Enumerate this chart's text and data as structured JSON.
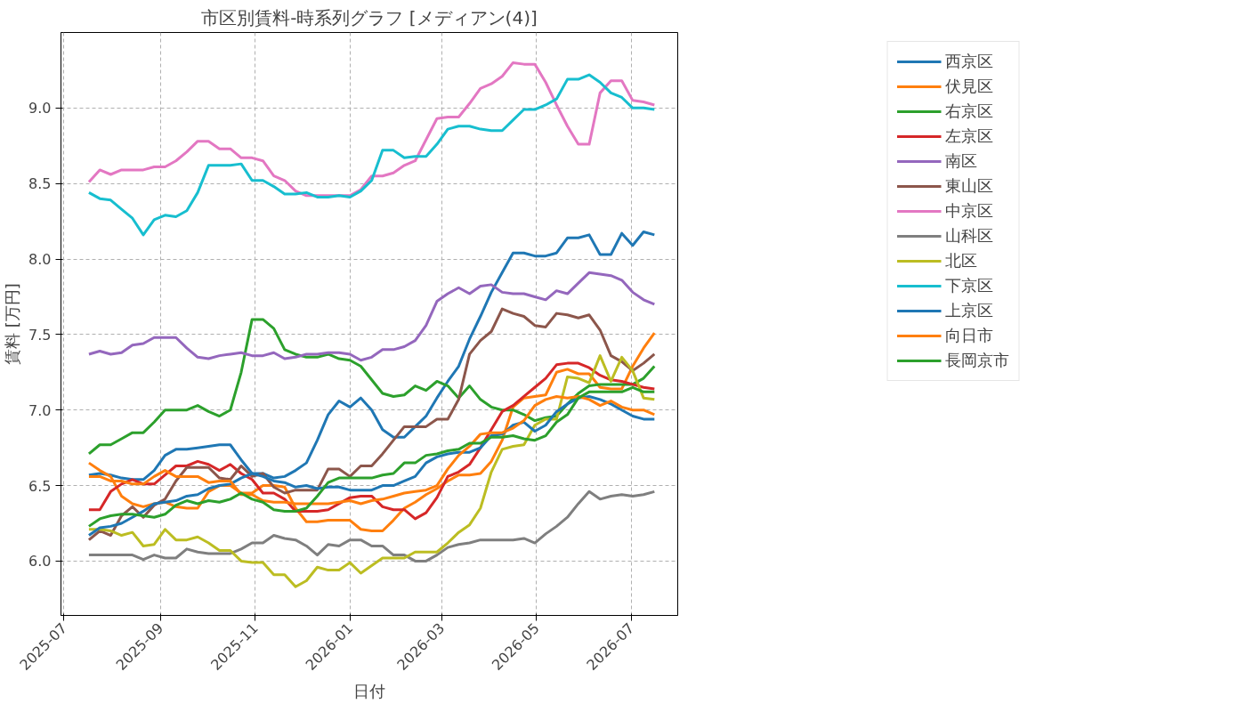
{
  "chart_data": {
    "type": "line",
    "title": "市区別賃料-時系列グラフ [メディアン(4)]",
    "xlabel": "日付",
    "ylabel": "賃料 [万円]",
    "x": [
      "2025-07-17",
      "2025-07-24",
      "2025-07-31",
      "2025-08-07",
      "2025-08-14",
      "2025-08-21",
      "2025-08-28",
      "2025-09-04",
      "2025-09-11",
      "2025-09-18",
      "2025-09-25",
      "2025-10-02",
      "2025-10-09",
      "2025-10-16",
      "2025-10-23",
      "2025-10-30",
      "2025-11-06",
      "2025-11-13",
      "2025-11-20",
      "2025-11-27",
      "2025-12-04",
      "2025-12-11",
      "2025-12-18",
      "2025-12-25",
      "2026-01-01",
      "2026-01-08",
      "2026-01-15",
      "2026-01-22",
      "2026-01-29",
      "2026-02-05",
      "2026-02-12",
      "2026-02-19",
      "2026-02-26",
      "2026-03-05",
      "2026-03-12",
      "2026-03-19",
      "2026-03-26",
      "2026-04-02",
      "2026-04-09",
      "2026-04-16",
      "2026-04-23",
      "2026-04-30",
      "2026-05-07",
      "2026-05-14",
      "2026-05-21",
      "2026-05-28",
      "2026-06-04",
      "2026-06-11",
      "2026-06-18",
      "2026-06-25",
      "2026-07-02",
      "2026-07-09",
      "2026-07-16"
    ],
    "xlim": [
      "2025-06-29",
      "2026-07-31"
    ],
    "xticks": [
      {
        "value": "2025-07",
        "label": "2025-07"
      },
      {
        "value": "2025-09",
        "label": "2025-09"
      },
      {
        "value": "2025-11",
        "label": "2025-11"
      },
      {
        "value": "2026-01",
        "label": "2026-01"
      },
      {
        "value": "2026-03",
        "label": "2026-03"
      },
      {
        "value": "2026-05",
        "label": "2026-05"
      },
      {
        "value": "2026-07",
        "label": "2026-07"
      }
    ],
    "ylim": [
      5.64,
      9.5
    ],
    "yticks": [
      {
        "value": 6,
        "label": "6.0"
      },
      {
        "value": 6.5,
        "label": "6.5"
      },
      {
        "value": 7,
        "label": "7.0"
      },
      {
        "value": 7.5,
        "label": "7.5"
      },
      {
        "value": 8,
        "label": "8.0"
      },
      {
        "value": 8.5,
        "label": "8.5"
      },
      {
        "value": 9,
        "label": "9.0"
      }
    ],
    "grid": true,
    "legend": "right",
    "marker": "none",
    "line_style": "solid",
    "series": [
      {
        "name": "西京区",
        "color": "#1f77b4",
        "values": [
          6.57,
          6.58,
          6.57,
          6.55,
          6.54,
          6.54,
          6.6,
          6.7,
          6.74,
          6.74,
          6.75,
          6.76,
          6.77,
          6.77,
          6.67,
          6.58,
          6.58,
          6.55,
          6.56,
          6.6,
          6.65,
          6.8,
          6.97,
          7.06,
          7.02,
          7.08,
          7.0,
          6.87,
          6.82,
          6.82,
          6.89,
          6.96,
          7.08,
          7.19,
          7.29,
          7.47,
          7.62,
          7.78,
          7.91,
          8.04,
          8.04,
          8.02,
          8.02,
          8.04,
          8.14,
          8.14,
          8.16,
          8.03,
          8.03,
          8.17,
          8.09,
          8.18,
          8.16
        ]
      },
      {
        "name": "伏見区",
        "color": "#ff7f0e",
        "values": [
          6.65,
          6.6,
          6.56,
          6.43,
          6.38,
          6.36,
          6.38,
          6.39,
          6.36,
          6.35,
          6.35,
          6.46,
          6.5,
          6.5,
          6.45,
          6.45,
          6.5,
          6.5,
          6.49,
          6.35,
          6.26,
          6.26,
          6.27,
          6.27,
          6.27,
          6.21,
          6.2,
          6.2,
          6.27,
          6.35,
          6.39,
          6.44,
          6.48,
          6.53,
          6.57,
          6.57,
          6.58,
          6.66,
          6.8,
          7.02,
          7.08,
          7.09,
          7.1,
          7.25,
          7.27,
          7.24,
          7.24,
          7.15,
          7.14,
          7.14,
          7.29,
          7.41,
          7.51
        ]
      },
      {
        "name": "右京区",
        "color": "#2ca02c",
        "values": [
          6.71,
          6.77,
          6.77,
          6.81,
          6.85,
          6.85,
          6.92,
          7.0,
          7.0,
          7.0,
          7.03,
          6.99,
          6.96,
          7.0,
          7.25,
          7.6,
          7.6,
          7.54,
          7.4,
          7.37,
          7.35,
          7.35,
          7.37,
          7.34,
          7.33,
          7.29,
          7.2,
          7.11,
          7.09,
          7.1,
          7.16,
          7.13,
          7.19,
          7.16,
          7.08,
          7.16,
          7.07,
          7.02,
          7.0,
          7.0,
          6.97,
          6.93,
          6.95,
          6.96,
          7.04,
          7.11,
          7.16,
          7.17,
          7.17,
          7.17,
          7.17,
          7.21,
          7.29
        ]
      },
      {
        "name": "左京区",
        "color": "#d62728",
        "values": [
          6.34,
          6.34,
          6.46,
          6.51,
          6.54,
          6.51,
          6.51,
          6.57,
          6.63,
          6.63,
          6.66,
          6.64,
          6.6,
          6.64,
          6.58,
          6.54,
          6.45,
          6.45,
          6.41,
          6.33,
          6.33,
          6.33,
          6.34,
          6.38,
          6.42,
          6.43,
          6.43,
          6.36,
          6.34,
          6.34,
          6.28,
          6.32,
          6.42,
          6.56,
          6.59,
          6.64,
          6.75,
          6.87,
          6.99,
          7.03,
          7.09,
          7.15,
          7.21,
          7.3,
          7.31,
          7.31,
          7.28,
          7.23,
          7.2,
          7.19,
          7.17,
          7.15,
          7.14
        ]
      },
      {
        "name": "南区",
        "color": "#9467bd",
        "values": [
          7.37,
          7.39,
          7.37,
          7.38,
          7.43,
          7.44,
          7.48,
          7.48,
          7.48,
          7.41,
          7.35,
          7.34,
          7.36,
          7.37,
          7.38,
          7.36,
          7.36,
          7.38,
          7.34,
          7.35,
          7.37,
          7.37,
          7.38,
          7.38,
          7.37,
          7.33,
          7.35,
          7.4,
          7.4,
          7.42,
          7.46,
          7.56,
          7.72,
          7.77,
          7.81,
          7.77,
          7.82,
          7.83,
          7.78,
          7.77,
          7.77,
          7.75,
          7.73,
          7.79,
          7.77,
          7.84,
          7.91,
          7.9,
          7.89,
          7.86,
          7.78,
          7.73,
          7.7
        ]
      },
      {
        "name": "東山区",
        "color": "#8c564b",
        "values": [
          6.14,
          6.2,
          6.17,
          6.3,
          6.36,
          6.29,
          6.37,
          6.41,
          6.53,
          6.62,
          6.62,
          6.62,
          6.55,
          6.54,
          6.63,
          6.56,
          6.58,
          6.49,
          6.45,
          6.47,
          6.47,
          6.47,
          6.61,
          6.61,
          6.56,
          6.63,
          6.63,
          6.71,
          6.8,
          6.89,
          6.89,
          6.89,
          6.94,
          6.94,
          7.07,
          7.37,
          7.46,
          7.52,
          7.67,
          7.64,
          7.62,
          7.56,
          7.55,
          7.64,
          7.63,
          7.61,
          7.63,
          7.53,
          7.36,
          7.32,
          7.26,
          7.31,
          7.37
        ]
      },
      {
        "name": "中京区",
        "color": "#e377c2",
        "values": [
          8.51,
          8.59,
          8.56,
          8.59,
          8.59,
          8.59,
          8.61,
          8.61,
          8.65,
          8.71,
          8.78,
          8.78,
          8.73,
          8.73,
          8.67,
          8.67,
          8.65,
          8.55,
          8.52,
          8.45,
          8.42,
          8.42,
          8.42,
          8.42,
          8.42,
          8.46,
          8.55,
          8.55,
          8.57,
          8.62,
          8.65,
          8.79,
          8.93,
          8.94,
          8.94,
          9.03,
          9.13,
          9.16,
          9.21,
          9.3,
          9.29,
          9.29,
          9.17,
          9.02,
          8.88,
          8.76,
          8.76,
          9.1,
          9.18,
          9.18,
          9.05,
          9.04,
          9.02
        ]
      },
      {
        "name": "山科区",
        "color": "#7f7f7f",
        "values": [
          6.04,
          6.04,
          6.04,
          6.04,
          6.04,
          6.01,
          6.04,
          6.02,
          6.02,
          6.08,
          6.06,
          6.05,
          6.05,
          6.05,
          6.08,
          6.12,
          6.12,
          6.17,
          6.15,
          6.14,
          6.1,
          6.04,
          6.11,
          6.1,
          6.14,
          6.14,
          6.1,
          6.1,
          6.04,
          6.04,
          6.0,
          6.0,
          6.04,
          6.09,
          6.11,
          6.12,
          6.14,
          6.14,
          6.14,
          6.14,
          6.15,
          6.12,
          6.18,
          6.23,
          6.29,
          6.38,
          6.46,
          6.41,
          6.43,
          6.44,
          6.43,
          6.44,
          6.46
        ]
      },
      {
        "name": "北区",
        "color": "#bcbd22",
        "values": [
          6.21,
          6.21,
          6.2,
          6.17,
          6.19,
          6.1,
          6.11,
          6.21,
          6.14,
          6.14,
          6.16,
          6.12,
          6.07,
          6.07,
          6.0,
          5.99,
          5.99,
          5.91,
          5.91,
          5.83,
          5.87,
          5.96,
          5.94,
          5.94,
          5.99,
          5.92,
          5.97,
          6.02,
          6.02,
          6.02,
          6.06,
          6.06,
          6.06,
          6.12,
          6.19,
          6.24,
          6.35,
          6.59,
          6.74,
          6.76,
          6.77,
          6.9,
          6.94,
          6.94,
          7.22,
          7.21,
          7.18,
          7.36,
          7.19,
          7.35,
          7.26,
          7.08,
          7.07
        ]
      },
      {
        "name": "下京区",
        "color": "#17becf",
        "values": [
          8.44,
          8.4,
          8.39,
          8.33,
          8.27,
          8.16,
          8.26,
          8.29,
          8.28,
          8.32,
          8.44,
          8.62,
          8.62,
          8.62,
          8.63,
          8.52,
          8.52,
          8.48,
          8.43,
          8.43,
          8.44,
          8.41,
          8.41,
          8.42,
          8.41,
          8.45,
          8.52,
          8.72,
          8.72,
          8.67,
          8.68,
          8.68,
          8.76,
          8.86,
          8.88,
          8.88,
          8.86,
          8.85,
          8.85,
          8.92,
          8.99,
          8.99,
          9.02,
          9.06,
          9.19,
          9.19,
          9.22,
          9.17,
          9.1,
          9.07,
          9.0,
          9.0,
          8.99
        ]
      },
      {
        "name": "上京区",
        "color": "#1f77b4",
        "values": [
          6.17,
          6.22,
          6.23,
          6.25,
          6.29,
          6.33,
          6.38,
          6.39,
          6.4,
          6.43,
          6.44,
          6.48,
          6.5,
          6.51,
          6.55,
          6.58,
          6.56,
          6.53,
          6.52,
          6.49,
          6.5,
          6.48,
          6.49,
          6.49,
          6.47,
          6.47,
          6.47,
          6.5,
          6.5,
          6.53,
          6.56,
          6.65,
          6.69,
          6.71,
          6.72,
          6.72,
          6.75,
          6.83,
          6.84,
          6.9,
          6.92,
          6.86,
          6.9,
          6.99,
          7.04,
          7.08,
          7.09,
          7.07,
          7.04,
          7.0,
          6.96,
          6.94,
          6.94
        ]
      },
      {
        "name": "向日市",
        "color": "#ff7f0e",
        "values": [
          6.56,
          6.56,
          6.53,
          6.53,
          6.51,
          6.51,
          6.56,
          6.6,
          6.56,
          6.56,
          6.56,
          6.52,
          6.53,
          6.53,
          6.44,
          6.44,
          6.4,
          6.39,
          6.39,
          6.38,
          6.38,
          6.38,
          6.38,
          6.39,
          6.4,
          6.38,
          6.4,
          6.41,
          6.43,
          6.45,
          6.46,
          6.47,
          6.5,
          6.61,
          6.7,
          6.76,
          6.84,
          6.85,
          6.85,
          6.88,
          6.93,
          7.03,
          7.07,
          7.09,
          7.08,
          7.09,
          7.07,
          7.03,
          7.06,
          7.02,
          7.0,
          7.0,
          6.97
        ]
      },
      {
        "name": "長岡京市",
        "color": "#2ca02c",
        "values": [
          6.23,
          6.28,
          6.3,
          6.31,
          6.31,
          6.3,
          6.29,
          6.31,
          6.37,
          6.4,
          6.38,
          6.4,
          6.39,
          6.41,
          6.45,
          6.41,
          6.39,
          6.34,
          6.33,
          6.33,
          6.35,
          6.43,
          6.52,
          6.55,
          6.55,
          6.55,
          6.55,
          6.57,
          6.58,
          6.65,
          6.65,
          6.7,
          6.71,
          6.73,
          6.74,
          6.78,
          6.78,
          6.82,
          6.82,
          6.83,
          6.81,
          6.8,
          6.83,
          6.92,
          6.97,
          7.08,
          7.12,
          7.12,
          7.12,
          7.12,
          7.15,
          7.12,
          7.12
        ]
      }
    ]
  }
}
